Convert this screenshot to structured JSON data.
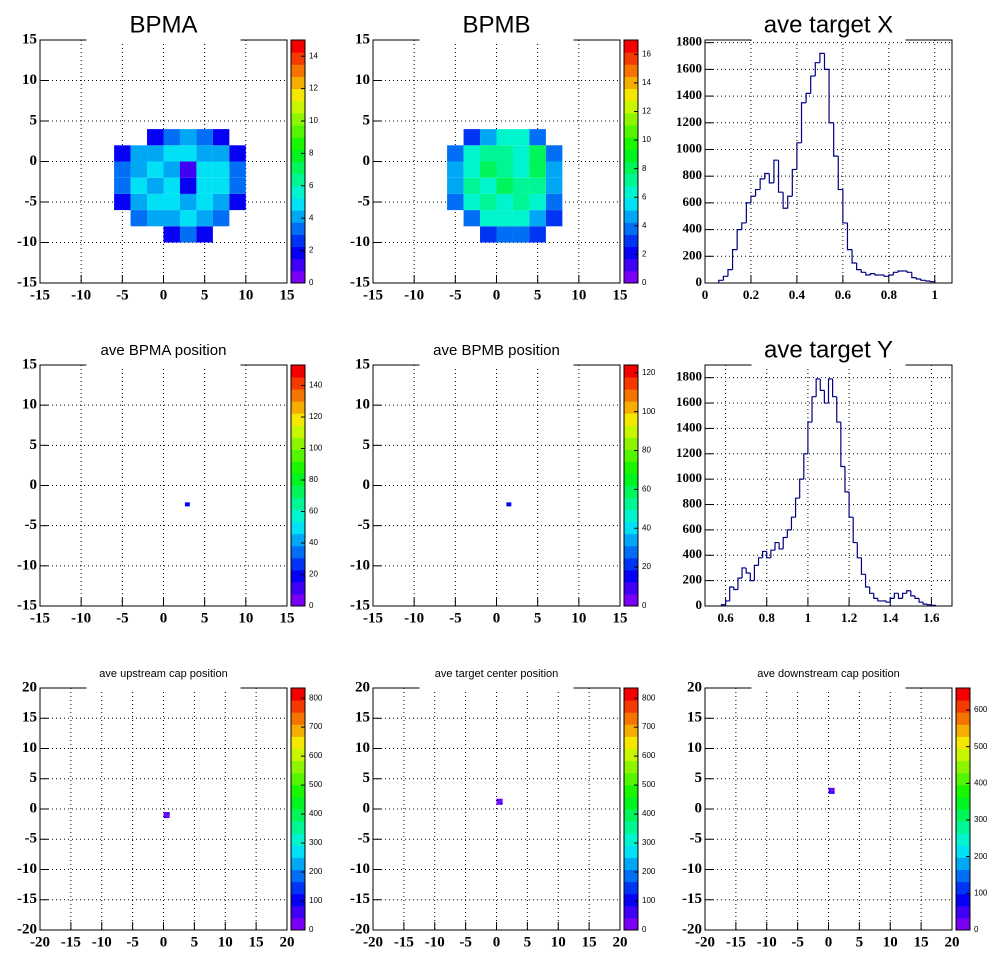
{
  "chart_data": [
    {
      "type": "hist2d",
      "title": "BPMA",
      "xlim": [
        -15,
        15
      ],
      "ylim": [
        -15,
        15
      ],
      "xticks": [
        -15,
        -10,
        -5,
        0,
        5,
        10,
        15
      ],
      "yticks": [
        -15,
        -10,
        -5,
        0,
        5,
        10,
        15
      ],
      "grid": true,
      "xbins": [
        -6,
        -4,
        -2,
        0,
        2,
        4,
        6,
        8,
        10
      ],
      "ybins": [
        -10,
        -8,
        -6,
        -4,
        -2,
        0,
        2,
        4
      ],
      "z": [
        [
          null,
          null,
          null,
          2,
          3,
          2,
          null,
          null
        ],
        [
          null,
          3,
          4,
          4,
          5,
          4,
          3,
          null
        ],
        [
          2,
          4,
          5,
          5,
          4,
          5,
          4,
          2
        ],
        [
          3,
          5,
          4,
          5,
          2,
          5,
          5,
          3
        ],
        [
          3,
          4,
          5,
          4,
          1,
          5,
          5,
          3
        ],
        [
          2,
          4,
          4,
          5,
          5,
          4,
          4,
          2
        ],
        [
          null,
          null,
          2,
          3,
          4,
          3,
          2,
          null
        ]
      ],
      "zlim": [
        0,
        15
      ],
      "zticks": [
        0,
        2,
        4,
        6,
        8,
        10,
        12,
        14
      ]
    },
    {
      "type": "hist2d",
      "title": "BPMB",
      "xlim": [
        -15,
        15
      ],
      "ylim": [
        -15,
        15
      ],
      "xticks": [
        -15,
        -10,
        -5,
        0,
        5,
        10,
        15
      ],
      "yticks": [
        -15,
        -10,
        -5,
        0,
        5,
        10,
        15
      ],
      "grid": true,
      "xbins": [
        -6,
        -4,
        -2,
        0,
        2,
        4,
        6,
        8
      ],
      "ybins": [
        -10,
        -8,
        -6,
        -4,
        -2,
        0,
        2,
        4
      ],
      "z": [
        [
          null,
          null,
          3,
          4,
          4,
          3,
          null
        ],
        [
          null,
          4,
          6,
          6,
          6,
          5,
          3
        ],
        [
          4,
          6,
          7,
          6,
          7,
          6,
          4
        ],
        [
          5,
          7,
          6,
          8,
          7,
          7,
          5
        ],
        [
          5,
          6,
          8,
          7,
          6,
          8,
          5
        ],
        [
          4,
          6,
          7,
          7,
          6,
          8,
          4
        ],
        [
          null,
          3,
          5,
          6,
          6,
          4,
          null
        ]
      ],
      "zlim": [
        0,
        17
      ],
      "zticks": [
        0,
        2,
        4,
        6,
        8,
        10,
        12,
        14,
        16
      ]
    },
    {
      "type": "histogram",
      "title": "ave target X",
      "xlim": [
        0,
        1.075
      ],
      "ylim": [
        0,
        1820
      ],
      "xticks": [
        0,
        0.2,
        0.4,
        0.6,
        0.8,
        1
      ],
      "yticks": [
        0,
        200,
        400,
        600,
        800,
        1000,
        1200,
        1400,
        1600,
        1800
      ],
      "grid": true,
      "color": "#000080",
      "bins": [
        0.06,
        0.08,
        0.1,
        0.12,
        0.14,
        0.16,
        0.18,
        0.2,
        0.22,
        0.24,
        0.26,
        0.28,
        0.3,
        0.32,
        0.34,
        0.36,
        0.38,
        0.4,
        0.42,
        0.44,
        0.46,
        0.48,
        0.5,
        0.52,
        0.54,
        0.56,
        0.58,
        0.6,
        0.62,
        0.64,
        0.66,
        0.68,
        0.7,
        0.72,
        0.74,
        0.76,
        0.78,
        0.8,
        0.82,
        0.84,
        0.86,
        0.88,
        0.9,
        0.92,
        0.94,
        0.96,
        0.98,
        1
      ],
      "values": [
        20,
        50,
        100,
        250,
        400,
        450,
        600,
        650,
        700,
        780,
        820,
        750,
        920,
        680,
        560,
        650,
        850,
        1050,
        1350,
        1420,
        1550,
        1650,
        1720,
        1600,
        1200,
        950,
        700,
        450,
        250,
        150,
        100,
        80,
        60,
        70,
        60,
        60,
        50,
        60,
        80,
        90,
        90,
        80,
        40,
        30,
        20,
        15,
        10
      ]
    },
    {
      "type": "hist2d",
      "title": "ave BPMA position",
      "xlim": [
        -15,
        15
      ],
      "ylim": [
        -15,
        15
      ],
      "xticks": [
        -15,
        -10,
        -5,
        0,
        5,
        10,
        15
      ],
      "yticks": [
        -15,
        -10,
        -5,
        0,
        5,
        10,
        15
      ],
      "grid": true,
      "xbins": [
        2.6,
        3.2
      ],
      "ybins": [
        -2.6,
        -2.1
      ],
      "z": [
        [
          20
        ]
      ],
      "zlim": [
        0,
        153
      ],
      "zticks": [
        0,
        20,
        40,
        60,
        80,
        100,
        120,
        140
      ]
    },
    {
      "type": "hist2d",
      "title": "ave BPMB position",
      "xlim": [
        -15,
        15
      ],
      "ylim": [
        -15,
        15
      ],
      "xticks": [
        -15,
        -10,
        -5,
        0,
        5,
        10,
        15
      ],
      "yticks": [
        -15,
        -10,
        -5,
        0,
        5,
        10,
        15
      ],
      "grid": true,
      "xbins": [
        1.2,
        1.8
      ],
      "ybins": [
        -2.6,
        -2.1
      ],
      "z": [
        [
          15
        ]
      ],
      "zlim": [
        0,
        124
      ],
      "zticks": [
        0,
        20,
        40,
        60,
        80,
        100,
        120
      ]
    },
    {
      "type": "histogram",
      "title": "ave target Y",
      "xlim": [
        0.5,
        1.7
      ],
      "ylim": [
        0,
        1900
      ],
      "xticks": [
        0.6,
        0.8,
        1,
        1.2,
        1.4,
        1.6
      ],
      "yticks": [
        0,
        200,
        400,
        600,
        800,
        1000,
        1200,
        1400,
        1600,
        1800
      ],
      "grid": true,
      "color": "#000080",
      "bins": [
        0.58,
        0.6,
        0.62,
        0.64,
        0.66,
        0.68,
        0.7,
        0.72,
        0.74,
        0.76,
        0.78,
        0.8,
        0.82,
        0.84,
        0.86,
        0.88,
        0.9,
        0.92,
        0.94,
        0.96,
        0.98,
        1,
        1.02,
        1.04,
        1.06,
        1.08,
        1.1,
        1.12,
        1.14,
        1.16,
        1.18,
        1.2,
        1.22,
        1.24,
        1.26,
        1.28,
        1.3,
        1.32,
        1.34,
        1.36,
        1.38,
        1.4,
        1.42,
        1.44,
        1.46,
        1.48,
        1.5,
        1.52,
        1.54,
        1.56,
        1.58,
        1.6,
        1.62
      ],
      "values": [
        10,
        40,
        150,
        130,
        220,
        300,
        260,
        200,
        320,
        380,
        430,
        380,
        440,
        500,
        450,
        540,
        600,
        700,
        850,
        1000,
        1200,
        1450,
        1650,
        1790,
        1700,
        1600,
        1790,
        1650,
        1450,
        1100,
        900,
        700,
        500,
        380,
        250,
        150,
        100,
        60,
        40,
        40,
        30,
        60,
        100,
        60,
        100,
        120,
        80,
        60,
        30,
        15,
        10,
        5
      ]
    },
    {
      "type": "hist2d",
      "title": "ave upstream cap position",
      "xlim": [
        -20,
        20
      ],
      "ylim": [
        -20,
        20
      ],
      "xticks": [
        -20,
        -15,
        -10,
        -5,
        0,
        5,
        10,
        15,
        20
      ],
      "yticks": [
        -20,
        -15,
        -10,
        -5,
        0,
        5,
        10,
        15,
        20
      ],
      "grid": true,
      "xbins": [
        0,
        0.5,
        1
      ],
      "ybins": [
        -1.5,
        -1,
        -0.5
      ],
      "z": [
        [
          50,
          30
        ],
        [
          30,
          60
        ]
      ],
      "zlim": [
        0,
        835
      ],
      "zticks": [
        0,
        100,
        200,
        300,
        400,
        500,
        600,
        700,
        800
      ]
    },
    {
      "type": "hist2d",
      "title": "ave target center  position",
      "xlim": [
        -20,
        20
      ],
      "ylim": [
        -20,
        20
      ],
      "xticks": [
        -20,
        -15,
        -10,
        -5,
        0,
        5,
        10,
        15,
        20
      ],
      "yticks": [
        -20,
        -15,
        -10,
        -5,
        0,
        5,
        10,
        15,
        20
      ],
      "grid": true,
      "xbins": [
        0,
        0.5,
        1
      ],
      "ybins": [
        0.7,
        1.2,
        1.7
      ],
      "z": [
        [
          40,
          70
        ],
        [
          60,
          30
        ]
      ],
      "zlim": [
        0,
        835
      ],
      "zticks": [
        0,
        100,
        200,
        300,
        400,
        500,
        600,
        700,
        800
      ]
    },
    {
      "type": "hist2d",
      "title": "ave downstream cap position",
      "xlim": [
        -20,
        20
      ],
      "ylim": [
        -20,
        20
      ],
      "xticks": [
        -20,
        -15,
        -10,
        -5,
        0,
        5,
        10,
        15,
        20
      ],
      "yticks": [
        -20,
        -15,
        -10,
        -5,
        0,
        5,
        10,
        15,
        20
      ],
      "grid": true,
      "xbins": [
        0,
        0.5,
        1
      ],
      "ybins": [
        2.5,
        3,
        3.5
      ],
      "z": [
        [
          50,
          60
        ],
        [
          40,
          30
        ]
      ],
      "zlim": [
        0,
        660
      ],
      "zticks": [
        0,
        100,
        200,
        300,
        400,
        500,
        600
      ]
    }
  ]
}
